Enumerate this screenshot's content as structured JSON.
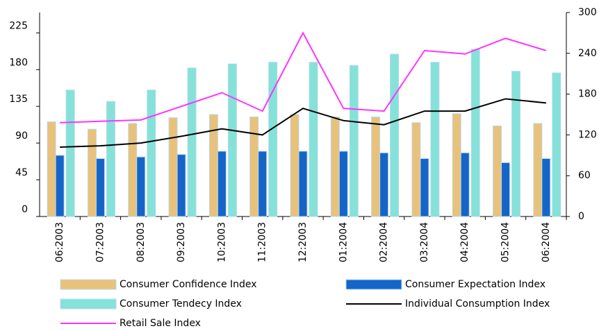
{
  "chart_data": {
    "type": "bar-line",
    "categories": [
      "06:2003",
      "07:2003",
      "08:2003",
      "09:2003",
      "10:2003",
      "11:2003",
      "12:2003",
      "01:2004",
      "02:2004",
      "03:2004",
      "04:2004",
      "05:2004",
      "06:2004"
    ],
    "series": [
      {
        "name": "Consumer Confidence Index",
        "type": "bar",
        "color": "#e8c27a",
        "values": [
          116,
          107,
          114,
          121,
          125,
          122,
          125,
          122,
          122,
          115,
          126,
          111,
          114
        ]
      },
      {
        "name": "Consumer Expectation Index",
        "type": "bar",
        "color": "#1565c8",
        "values": [
          75,
          71,
          73,
          76,
          80,
          80,
          80,
          80,
          78,
          71,
          78,
          66,
          71
        ]
      },
      {
        "name": "Consumer Tendecy Index",
        "type": "bar",
        "color": "#84e2d8",
        "values": [
          155,
          141,
          155,
          182,
          187,
          189,
          189,
          185,
          199,
          189,
          205,
          178,
          176
        ]
      },
      {
        "name": "Individual Consumption Index",
        "type": "line",
        "axis": "y2",
        "color": "#000000",
        "values": [
          102,
          104,
          108,
          118,
          129,
          120,
          159,
          141,
          135,
          155,
          155,
          173,
          167
        ]
      },
      {
        "name": "Retail Sale Index",
        "type": "line",
        "axis": "y2",
        "color": "#ff33ff",
        "values": [
          138,
          140,
          142,
          162,
          182,
          155,
          270,
          159,
          155,
          244,
          239,
          262,
          244
        ]
      }
    ],
    "ylim": [
      0,
      250
    ],
    "yticks": [
      0,
      45,
      90,
      135,
      180,
      225
    ],
    "y2lim": [
      0,
      300
    ],
    "y2ticks": [
      0,
      60,
      120,
      180,
      240,
      300
    ],
    "grid": false,
    "legend": "bottom"
  }
}
